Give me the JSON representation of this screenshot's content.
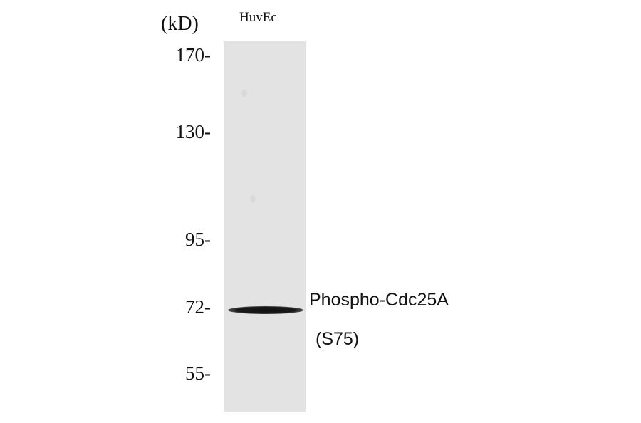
{
  "unit_label": "(kD)",
  "lane_labels": [
    "HuvEc"
  ],
  "markers": [
    "170-",
    "130-",
    "95-",
    "72-",
    "55-"
  ],
  "target": {
    "line1": "Phospho-Cdc25A",
    "line2": "(S75)"
  },
  "colors": {
    "membrane": "#e3e3e3",
    "band": "#111111"
  }
}
